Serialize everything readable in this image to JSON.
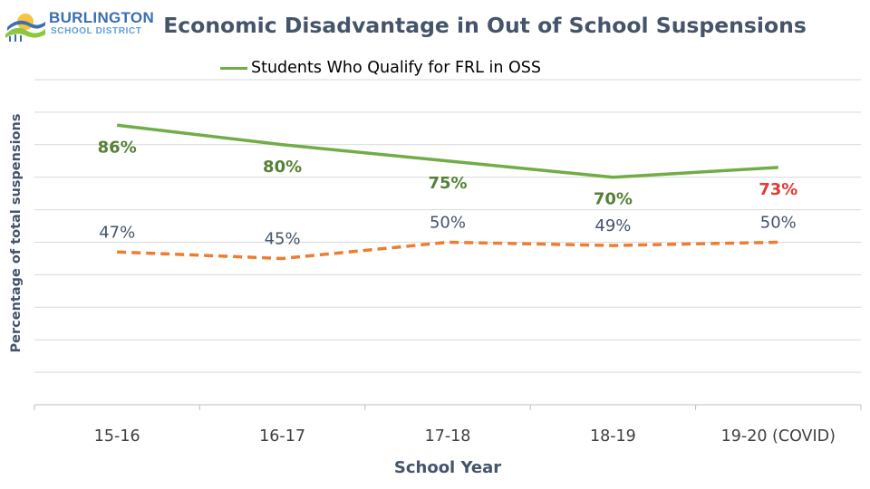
{
  "logo": {
    "line1": "BURLINGTON",
    "line2": "SCHOOL DISTRICT",
    "colors": {
      "blue": "#3a6fb0",
      "lightblue": "#5e9ed6",
      "green": "#8dc63f",
      "yellow": "#f6c343"
    }
  },
  "chart_data": {
    "type": "line",
    "title": "Economic Disadvantage in Out of School Suspensions",
    "xlabel": "School Year",
    "ylabel": "Percentage of total suspensions",
    "categories": [
      "15-16",
      "16-17",
      "17-18",
      "18-19",
      "19-20 (COVID)"
    ],
    "ylim": [
      0,
      100
    ],
    "grid": true,
    "legend_position": "top",
    "series": [
      {
        "name": "Students Who Qualify for FRL in OSS",
        "values": [
          86,
          80,
          75,
          70,
          73
        ],
        "labels": [
          "86%",
          "80%",
          "75%",
          "70%",
          "73%"
        ],
        "label_colors": [
          "#548235",
          "#548235",
          "#548235",
          "#548235",
          "#e53935"
        ],
        "label_placement": "below",
        "color": "#70ad47",
        "style": "solid"
      },
      {
        "values": [
          47,
          45,
          50,
          49,
          50
        ],
        "labels": [
          "47%",
          "45%",
          "50%",
          "49%",
          "50%"
        ],
        "label_colors": [
          "#44546a",
          "#44546a",
          "#44546a",
          "#44546a",
          "#44546a"
        ],
        "label_placement": "above",
        "color": "#ed7d31",
        "style": "dashed"
      }
    ],
    "colors": {
      "grid": "#d9d9d9",
      "axis": "#bfbfbf",
      "title": "#44546a"
    }
  }
}
